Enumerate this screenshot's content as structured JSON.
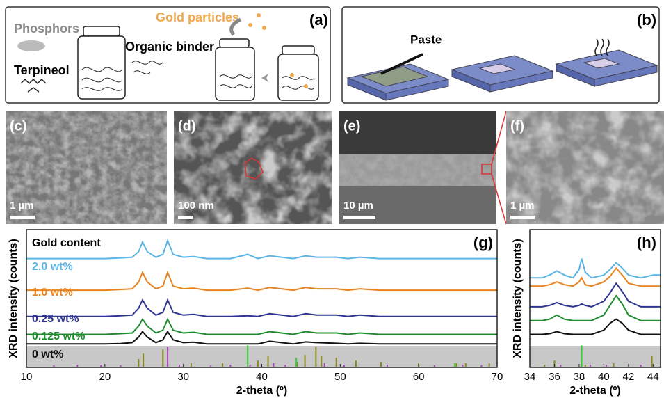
{
  "panels": [
    {
      "label": "(a)",
      "texts": [
        "Phosphors",
        "Terpineol",
        "Gold particles",
        "Organic binder"
      ]
    },
    {
      "label": "(b)",
      "texts": [
        "Paste"
      ]
    },
    {
      "label": "(c)",
      "scale_bar": "1 µm"
    },
    {
      "label": "(d)",
      "scale_bar": "100 nm"
    },
    {
      "label": "(e)",
      "scale_bar": "10 µm"
    },
    {
      "label": "(f)",
      "scale_bar": "1 µm"
    }
  ],
  "chart_data": [
    {
      "type": "line",
      "label": "(g)",
      "xlabel": "2-theta (º)",
      "ylabel": "XRD intensity (counts)",
      "legend_title": "Gold content",
      "xlim": [
        10,
        70
      ],
      "xticks": [
        10,
        20,
        30,
        40,
        50,
        60,
        70
      ],
      "ylim": [
        0,
        100
      ],
      "x": [
        10,
        15,
        20,
        22,
        23.5,
        24.3,
        24.8,
        25.4,
        26.5,
        27.4,
        28,
        28.7,
        30,
        31.3,
        33,
        36,
        38.2,
        39.5,
        41,
        42.5,
        44,
        45.6,
        47,
        49.5,
        51,
        52.5,
        55,
        60,
        65,
        70
      ],
      "series": [
        {
          "name": "2.0 wt%",
          "color": "#5ab4e5",
          "values": [
            79,
            79,
            79,
            79.5,
            80,
            84,
            91,
            84,
            80,
            82,
            92,
            82,
            80,
            80.5,
            79,
            79,
            82,
            79,
            81,
            80,
            79,
            81,
            80,
            80,
            79,
            80,
            79,
            79,
            79,
            79
          ]
        },
        {
          "name": "1.0 wt%",
          "color": "#e8821e",
          "values": [
            56,
            56,
            56,
            56.5,
            57,
            62,
            69,
            62,
            57,
            59,
            69,
            59,
            57,
            57.5,
            56,
            56,
            57.5,
            56,
            58,
            57,
            56,
            58,
            57,
            57,
            56,
            57,
            56,
            56,
            56,
            56
          ]
        },
        {
          "name": "0.25 wt%",
          "color": "#2e3592",
          "values": [
            37,
            37,
            37,
            37.5,
            38,
            43,
            49,
            43,
            38,
            40,
            49,
            40,
            38,
            38.5,
            37,
            37,
            37.5,
            37,
            39,
            38,
            37,
            39,
            38,
            38,
            37,
            38,
            37,
            37,
            37,
            37
          ]
        },
        {
          "name": "0.125 wt%",
          "color": "#1e8c2e",
          "values": [
            24,
            24,
            24,
            24.5,
            25,
            30,
            35,
            30,
            25,
            27,
            35,
            27,
            25,
            25.5,
            24,
            24,
            24,
            24,
            26,
            25,
            24,
            26,
            25,
            25,
            24,
            25,
            24,
            24,
            24,
            24
          ]
        },
        {
          "name": "0 wt%",
          "color": "#111111",
          "values": [
            17,
            17,
            17,
            17.3,
            18,
            22,
            26,
            22,
            18,
            20,
            26,
            20,
            18,
            18.3,
            17,
            17,
            17,
            17,
            19,
            18,
            17,
            18.5,
            18,
            17.5,
            17,
            17.5,
            17,
            17,
            17,
            17
          ]
        }
      ],
      "sticks": [
        {
          "color": "#8a8a1a",
          "x": [
            24.3,
            24.9,
            27.4,
            31,
            35,
            39.5,
            40.8,
            44.5,
            45.5,
            46.9,
            47.6,
            49.5,
            52,
            55.2,
            60,
            64.8,
            66,
            69
          ],
          "values": [
            6,
            10,
            13,
            3,
            3,
            5,
            8,
            4,
            9,
            15,
            8,
            7,
            5,
            4,
            3,
            3,
            3,
            3
          ]
        },
        {
          "color": "#b040c0",
          "x": [
            13.5,
            16.5,
            19.5,
            22,
            28,
            29.5,
            33.5,
            36,
            38.5,
            41.5,
            43,
            48,
            50.5,
            56,
            62,
            65.6,
            68
          ],
          "values": [
            1.5,
            2,
            2,
            1.5,
            15,
            2,
            1.5,
            2,
            2,
            3,
            2,
            3,
            2,
            2,
            1.5,
            2,
            1.5
          ]
        },
        {
          "color": "#33cc33",
          "x": [
            38.2,
            44.4,
            64.6
          ],
          "values": [
            16,
            7,
            3
          ]
        }
      ]
    },
    {
      "type": "line",
      "label": "(h)",
      "xlabel": "2-theta (º)",
      "ylabel": "XRD intensity (counts)",
      "xlim": [
        34,
        44.6
      ],
      "xticks": [
        34,
        36,
        38,
        40,
        42,
        44
      ],
      "ylim": [
        0,
        100
      ],
      "x": [
        34,
        35,
        35.6,
        36.2,
        36.8,
        37.5,
        38,
        38.2,
        38.5,
        39,
        40,
        40.5,
        41,
        41.5,
        42,
        43,
        44,
        44.6
      ],
      "series": [
        {
          "color": "#5ab4e5",
          "values": [
            65,
            65,
            67,
            70,
            67,
            65,
            71,
            79,
            69,
            65,
            67,
            71,
            76,
            72,
            67,
            65,
            67,
            67
          ]
        },
        {
          "color": "#e8821e",
          "values": [
            59,
            59,
            60,
            62,
            60,
            59,
            62,
            65,
            60,
            59,
            62,
            66,
            72,
            67,
            61,
            59,
            59,
            59
          ]
        },
        {
          "color": "#2e3592",
          "values": [
            44,
            44,
            45,
            47,
            45,
            44,
            45,
            46,
            45,
            44,
            48,
            54,
            61,
            55,
            48,
            44,
            44,
            44
          ]
        },
        {
          "color": "#1e8c2e",
          "values": [
            34,
            34,
            35,
            38,
            35,
            34,
            34,
            34,
            34,
            34,
            38,
            45,
            52,
            46,
            38,
            34,
            34,
            34
          ]
        },
        {
          "color": "#111111",
          "values": [
            24,
            24,
            24.5,
            26,
            24.5,
            24,
            24,
            24,
            24,
            24,
            27,
            32,
            35,
            32,
            27,
            24,
            24,
            24
          ]
        }
      ],
      "sticks": [
        {
          "color": "#8a8a1a",
          "x": [
            35.2,
            36,
            38.5,
            40.8,
            43.9
          ],
          "values": [
            2,
            5,
            2,
            3,
            8
          ]
        },
        {
          "color": "#b040c0",
          "x": [
            36.5,
            38.9,
            40.2,
            43
          ],
          "values": [
            2,
            2,
            2,
            2
          ]
        },
        {
          "color": "#33cc33",
          "x": [
            38.2
          ],
          "values": [
            16
          ]
        }
      ]
    }
  ]
}
